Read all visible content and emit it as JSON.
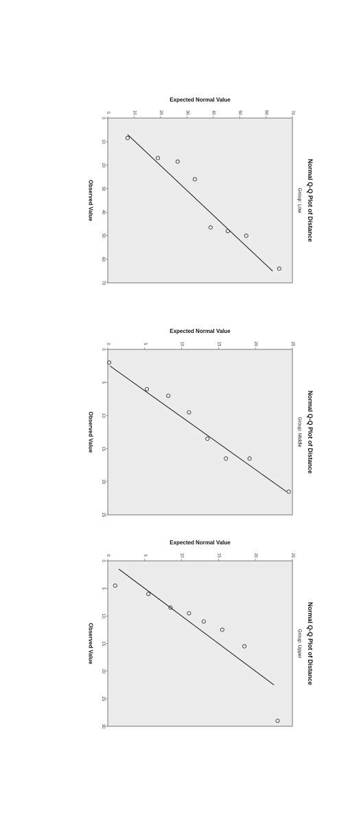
{
  "colors": {
    "panel_bg": "#ececec",
    "frame": "#555555",
    "line": "#111111",
    "marker": "#222222"
  },
  "chart_data": [
    {
      "type": "scatter",
      "title": "Normal Q-Q Plot of Distance",
      "subtitle": "Group: Low",
      "xlabel": "Observed Value",
      "ylabel": "Expected Normal Value",
      "xlim": [
        0,
        70
      ],
      "ylim": [
        0,
        70
      ],
      "xticks": [
        0,
        10,
        20,
        30,
        40,
        50,
        60,
        70
      ],
      "yticks": [
        0,
        10,
        20,
        30,
        40,
        50,
        60,
        70
      ],
      "tick_labels_x": [
        "0",
        "10",
        "20",
        "30",
        "40",
        "50",
        "60",
        "70"
      ],
      "tick_labels_y": [
        "0",
        "10",
        "20",
        "30",
        "40",
        "50",
        "60",
        "70"
      ],
      "points": [
        {
          "x": 8.5,
          "y": 7.5
        },
        {
          "x": 17,
          "y": 19
        },
        {
          "x": 18.5,
          "y": 26.5
        },
        {
          "x": 26,
          "y": 33
        },
        {
          "x": 46.5,
          "y": 39
        },
        {
          "x": 48,
          "y": 45.5
        },
        {
          "x": 50,
          "y": 52.5
        },
        {
          "x": 64,
          "y": 65
        }
      ],
      "reference_line": [
        {
          "x": 7,
          "y": 7.5
        },
        {
          "x": 65,
          "y": 62.5
        }
      ]
    },
    {
      "type": "scatter",
      "title": "Normal Q-Q Plot of Distance",
      "subtitle": "Group: Middle",
      "xlabel": "Observed Value",
      "ylabel": "Expected Normal Value",
      "xlim": [
        0,
        25
      ],
      "ylim": [
        0,
        25
      ],
      "xticks": [
        0,
        5,
        10,
        15,
        20,
        25
      ],
      "yticks": [
        0,
        5,
        10,
        15,
        20,
        25
      ],
      "tick_labels_x": [
        "0",
        "5",
        "10",
        "15",
        "20",
        "25"
      ],
      "tick_labels_y": [
        "0",
        "5",
        "10",
        "15",
        "20",
        "25"
      ],
      "points": [
        {
          "x": 2,
          "y": 0.2
        },
        {
          "x": 6,
          "y": 5.3
        },
        {
          "x": 7,
          "y": 8.2
        },
        {
          "x": 9.5,
          "y": 11
        },
        {
          "x": 13.5,
          "y": 13.5
        },
        {
          "x": 16.5,
          "y": 16
        },
        {
          "x": 16.5,
          "y": 19.2
        },
        {
          "x": 21.5,
          "y": 24.5
        }
      ],
      "reference_line": [
        {
          "x": 2.5,
          "y": 0.3
        },
        {
          "x": 21.5,
          "y": 24.2
        }
      ]
    },
    {
      "type": "scatter",
      "title": "Normal Q-Q Plot of Distance",
      "subtitle": "Group: Upper",
      "xlabel": "Observed Value",
      "ylabel": "Expected Normal Value",
      "xlim": [
        0,
        30
      ],
      "ylim": [
        0,
        25
      ],
      "xticks": [
        0,
        5,
        10,
        15,
        20,
        25,
        30
      ],
      "yticks": [
        0,
        5,
        10,
        15,
        20,
        25
      ],
      "tick_labels_x": [
        "0",
        "5",
        "10",
        "15",
        "20",
        "25",
        "30"
      ],
      "tick_labels_y": [
        "0",
        "5",
        "10",
        "15",
        "20",
        "25"
      ],
      "points": [
        {
          "x": 4.5,
          "y": 1
        },
        {
          "x": 6,
          "y": 5.5
        },
        {
          "x": 8.5,
          "y": 8.5
        },
        {
          "x": 9.5,
          "y": 11
        },
        {
          "x": 11,
          "y": 13
        },
        {
          "x": 12.5,
          "y": 15.5
        },
        {
          "x": 15.5,
          "y": 18.5
        },
        {
          "x": 29,
          "y": 23
        }
      ],
      "reference_line": [
        {
          "x": 1.5,
          "y": 1.5
        },
        {
          "x": 22.5,
          "y": 22.5
        }
      ]
    }
  ]
}
